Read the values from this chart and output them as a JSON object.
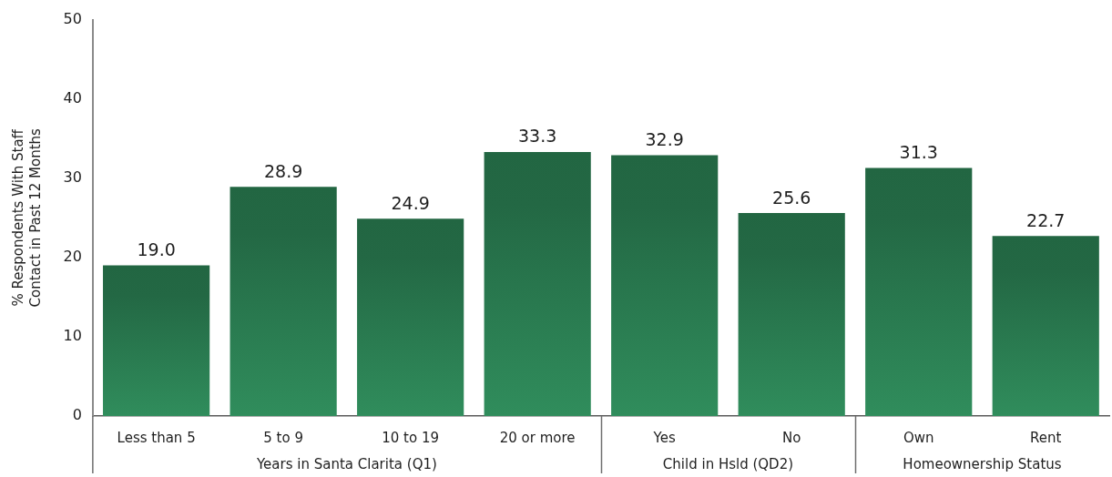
{
  "chart_data": {
    "type": "bar",
    "categories": [
      "Less than 5",
      "5 to 9",
      "10 to 19",
      "20 or more",
      "Yes",
      "No",
      "Own",
      "Rent"
    ],
    "values": [
      19.0,
      28.9,
      24.9,
      33.3,
      32.9,
      25.6,
      31.3,
      22.7
    ],
    "value_labels": [
      "19.0",
      "28.9",
      "24.9",
      "33.3",
      "32.9",
      "25.6",
      "31.3",
      "22.7"
    ],
    "color": "#2a7c51",
    "ylabel": "% Respondents With Staff Contact in Past 12 Months",
    "ylim": [
      0,
      50
    ],
    "yticks": [
      0,
      10,
      20,
      30,
      40,
      50
    ],
    "annotations": [
      "Years in Santa Clarita (Q1)",
      "Child in Hsld (QD2)",
      "Homeownership Status"
    ]
  }
}
